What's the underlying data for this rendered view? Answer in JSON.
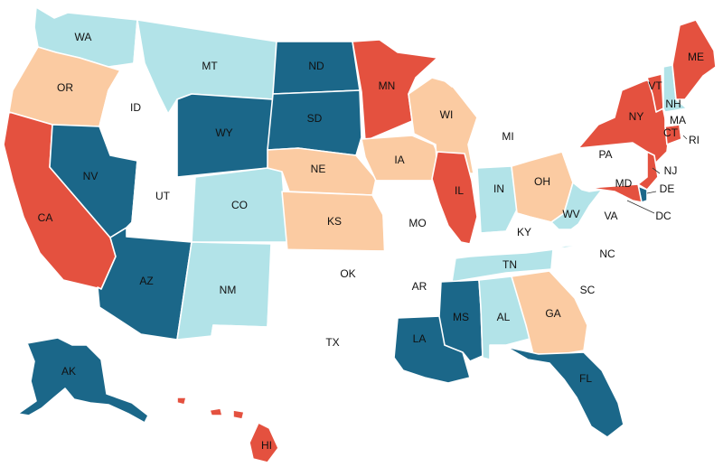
{
  "colors": {
    "red": "#e4513f",
    "dark_blue": "#1b6789",
    "light_blue": "#b2e3e8",
    "peach": "#fbcba2",
    "white": "#ffffff",
    "border": "#d0d0d0"
  },
  "states": [
    {
      "abbr": "WA",
      "category": "light_blue"
    },
    {
      "abbr": "OR",
      "category": "peach"
    },
    {
      "abbr": "CA",
      "category": "red"
    },
    {
      "abbr": "ID",
      "category": "white"
    },
    {
      "abbr": "NV",
      "category": "dark_blue"
    },
    {
      "abbr": "UT",
      "category": "white"
    },
    {
      "abbr": "AZ",
      "category": "dark_blue"
    },
    {
      "abbr": "MT",
      "category": "light_blue"
    },
    {
      "abbr": "WY",
      "category": "dark_blue"
    },
    {
      "abbr": "CO",
      "category": "light_blue"
    },
    {
      "abbr": "NM",
      "category": "light_blue"
    },
    {
      "abbr": "ND",
      "category": "dark_blue"
    },
    {
      "abbr": "SD",
      "category": "dark_blue"
    },
    {
      "abbr": "NE",
      "category": "peach"
    },
    {
      "abbr": "KS",
      "category": "peach"
    },
    {
      "abbr": "OK",
      "category": "white"
    },
    {
      "abbr": "TX",
      "category": "white"
    },
    {
      "abbr": "MN",
      "category": "red"
    },
    {
      "abbr": "IA",
      "category": "peach"
    },
    {
      "abbr": "MO",
      "category": "white"
    },
    {
      "abbr": "AR",
      "category": "white"
    },
    {
      "abbr": "LA",
      "category": "dark_blue"
    },
    {
      "abbr": "WI",
      "category": "peach"
    },
    {
      "abbr": "IL",
      "category": "red"
    },
    {
      "abbr": "MI",
      "category": "white"
    },
    {
      "abbr": "IN",
      "category": "light_blue"
    },
    {
      "abbr": "OH",
      "category": "peach"
    },
    {
      "abbr": "KY",
      "category": "white"
    },
    {
      "abbr": "TN",
      "category": "light_blue"
    },
    {
      "abbr": "MS",
      "category": "dark_blue"
    },
    {
      "abbr": "AL",
      "category": "light_blue"
    },
    {
      "abbr": "GA",
      "category": "peach"
    },
    {
      "abbr": "FL",
      "category": "dark_blue"
    },
    {
      "abbr": "SC",
      "category": "white"
    },
    {
      "abbr": "NC",
      "category": "white"
    },
    {
      "abbr": "VA",
      "category": "white"
    },
    {
      "abbr": "WV",
      "category": "light_blue"
    },
    {
      "abbr": "PA",
      "category": "white"
    },
    {
      "abbr": "NY",
      "category": "red"
    },
    {
      "abbr": "NJ",
      "category": "red"
    },
    {
      "abbr": "DE",
      "category": "dark_blue"
    },
    {
      "abbr": "MD",
      "category": "red"
    },
    {
      "abbr": "DC",
      "category": "white"
    },
    {
      "abbr": "CT",
      "category": "red"
    },
    {
      "abbr": "RI",
      "category": "white"
    },
    {
      "abbr": "MA",
      "category": "white"
    },
    {
      "abbr": "VT",
      "category": "red"
    },
    {
      "abbr": "NH",
      "category": "light_blue"
    },
    {
      "abbr": "ME",
      "category": "red"
    },
    {
      "abbr": "AK",
      "category": "dark_blue"
    },
    {
      "abbr": "HI",
      "category": "red"
    }
  ]
}
